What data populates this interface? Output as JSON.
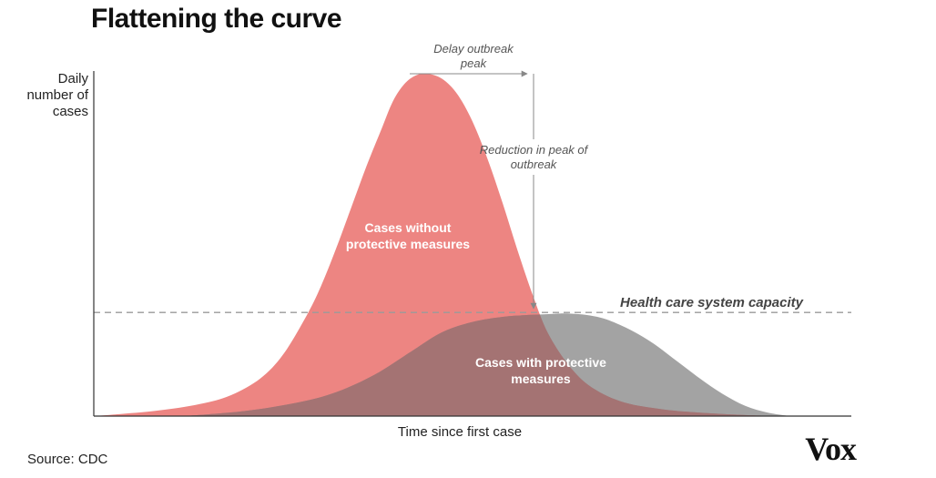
{
  "chart_data": {
    "type": "area",
    "title": "Flattening the curve",
    "xlabel": "Time since first case",
    "ylabel": [
      "Daily",
      "number of",
      "cases"
    ],
    "x_range": [
      0,
      100
    ],
    "y_range": [
      0,
      100
    ],
    "grid": false,
    "series": [
      {
        "key": "without",
        "label": [
          "Cases without",
          "protective measures"
        ],
        "color": "#ed8582",
        "x": [
          0,
          8,
          14,
          18,
          22,
          25,
          28,
          30,
          32,
          34,
          36,
          38,
          39.5,
          41,
          42.5,
          44,
          46,
          48,
          50,
          52,
          54,
          56,
          58,
          60,
          63,
          66,
          70,
          75,
          80,
          86,
          90
        ],
        "values": [
          0,
          1.5,
          3.5,
          6,
          11,
          18,
          29,
          38,
          49,
          61,
          73,
          84,
          92,
          97,
          99.5,
          100,
          98.5,
          94,
          86,
          75,
          62,
          48,
          35,
          24,
          14,
          8,
          4,
          2,
          1,
          0.3,
          0
        ]
      },
      {
        "key": "with",
        "label": [
          "Cases with protective",
          "measures"
        ],
        "color": "#808080",
        "x": [
          12,
          20,
          27,
          32,
          37,
          42,
          46,
          50,
          54,
          57,
          60,
          62,
          64,
          66,
          68,
          71,
          74,
          77,
          80,
          83,
          86,
          89,
          92
        ],
        "values": [
          0,
          1.5,
          4,
          7,
          12,
          19,
          24.5,
          27.5,
          29,
          29.5,
          29.8,
          30,
          29.8,
          29.2,
          28,
          25,
          21,
          16,
          11,
          6.5,
          3,
          1,
          0
        ]
      }
    ],
    "capacity": {
      "value": 30,
      "label": "Health care system capacity"
    },
    "annotations": {
      "delay": [
        "Delay outbreak",
        "peak"
      ],
      "reduction": [
        "Reduction in peak of",
        "outbreak"
      ]
    },
    "source": "Source: CDC",
    "logo": "Vox",
    "colors": {
      "overlap": "#a47373",
      "capacity_line": "#9a9a9a",
      "axis": "#333333"
    }
  }
}
